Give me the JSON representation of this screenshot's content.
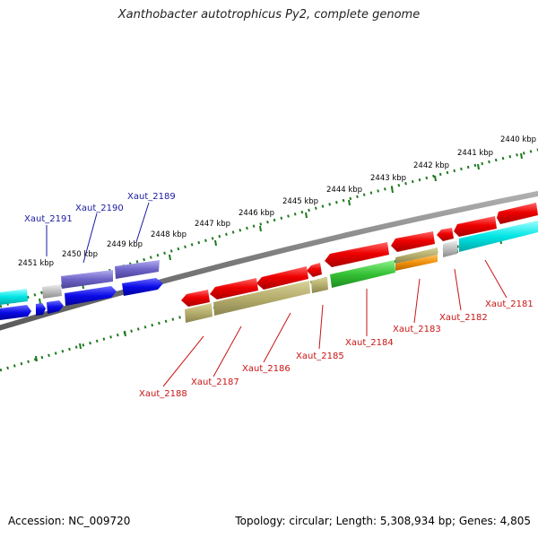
{
  "title": "Xanthobacter autotrophicus Py2, complete genome",
  "footer": {
    "accession": "Accession: NC_009720",
    "stats": "Topology: circular; Length: 5,308,934 bp; Genes: 4,805"
  },
  "scale_labels": [
    "2440 kbp",
    "2441 kbp",
    "2442 kbp",
    "2443 kbp",
    "2444 kbp",
    "2445 kbp",
    "2446 kbp",
    "2447 kbp",
    "2448 kbp",
    "2449 kbp",
    "2450 kbp",
    "2451 kbp"
  ],
  "gene_labels": [
    "Xaut_2181",
    "Xaut_2182",
    "Xaut_2183",
    "Xaut_2184",
    "Xaut_2185",
    "Xaut_2186",
    "Xaut_2187",
    "Xaut_2188",
    "Xaut_2189",
    "Xaut_2190",
    "Xaut_2191"
  ],
  "colors": {
    "backbone": "#808080",
    "scale_ticks": "#1e7a1e",
    "gene_red": "#e00000",
    "gene_olive": "#b5ad6c",
    "gene_green": "#3cc83c",
    "gene_orange": "#f0900a",
    "gene_cyan": "#00e5e5",
    "gene_gray": "#bdbdbd",
    "gene_blue": "#0a0ae6",
    "gene_violet": "#6e64c8",
    "label_red": "#c81414",
    "label_blue": "#1a1aa0"
  }
}
